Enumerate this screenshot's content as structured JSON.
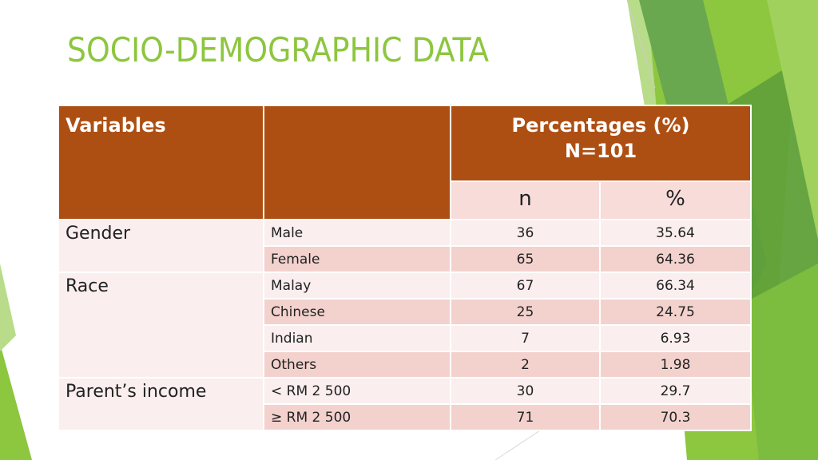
{
  "slide": {
    "title": "SOCIO-DEMOGRAPHIC DATA"
  },
  "table": {
    "header": {
      "variables": "Variables",
      "percentages": "Percentages (%)",
      "n_total": "N=101",
      "n_col": "n",
      "pct_col": "%"
    },
    "groups": [
      {
        "label": "Gender",
        "rows": [
          {
            "level": "Male",
            "n": "36",
            "pct": "35.64"
          },
          {
            "level": "Female",
            "n": "65",
            "pct": "64.36"
          }
        ]
      },
      {
        "label": "Race",
        "rows": [
          {
            "level": "Malay",
            "n": "67",
            "pct": "66.34"
          },
          {
            "level": "Chinese",
            "n": "25",
            "pct": "24.75"
          },
          {
            "level": "Indian",
            "n": "7",
            "pct": "6.93"
          },
          {
            "level": "Others",
            "n": "2",
            "pct": "1.98"
          }
        ]
      },
      {
        "label": "Parent’s income",
        "rows": [
          {
            "level": "< RM 2 500",
            "n": "30",
            "pct": "29.7"
          },
          {
            "level": "≥ RM 2 500",
            "n": "71",
            "pct": "70.3"
          }
        ]
      }
    ]
  },
  "colors": {
    "accent_green": "#8dc63f",
    "header_brown": "#ad4f13"
  }
}
